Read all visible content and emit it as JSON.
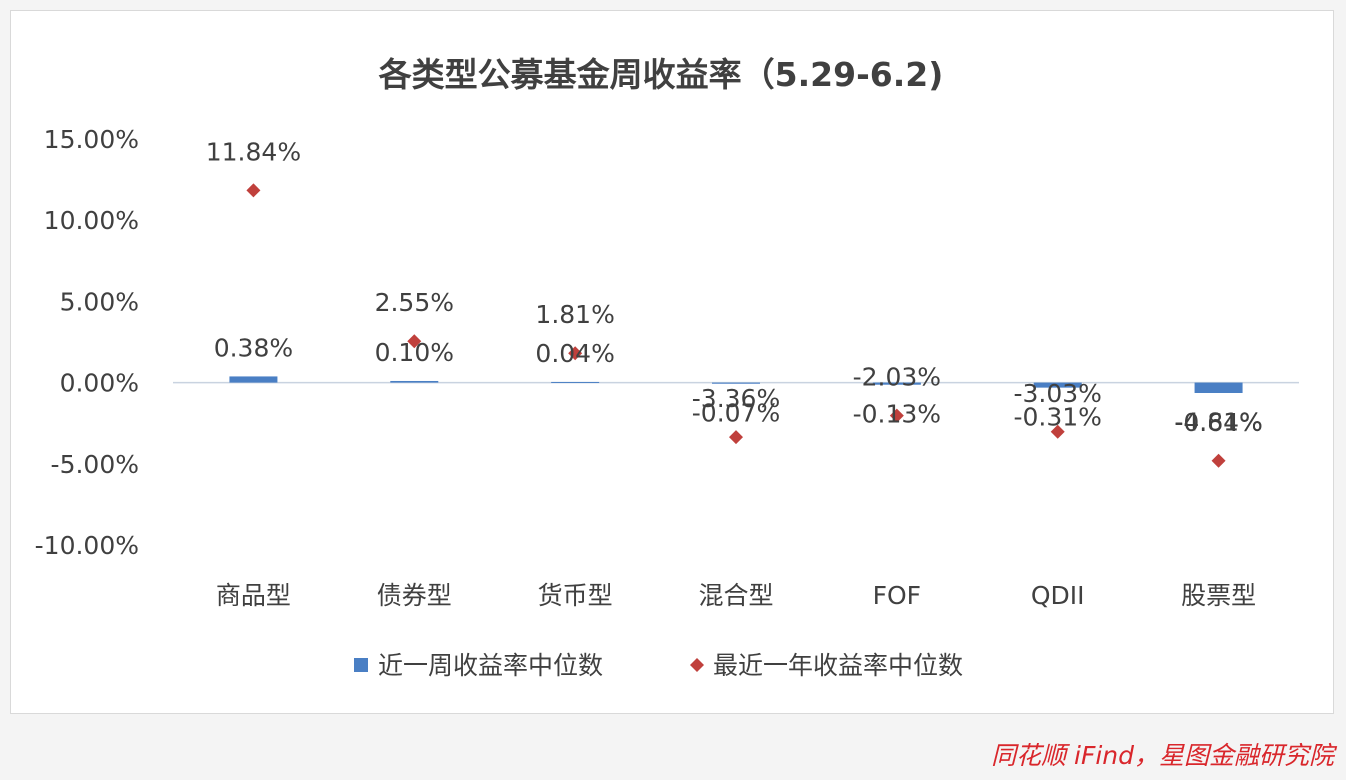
{
  "chart_data": {
    "type": "bar",
    "title": "各类型公募基金周收益率（5.29-6.2)",
    "categories": [
      "商品型",
      "债券型",
      "货币型",
      "混合型",
      "FOF",
      "QDII",
      "股票型"
    ],
    "series": [
      {
        "name": "近一周收益率中位数",
        "kind": "bar",
        "color": "#4a7fc4",
        "values": [
          0.38,
          0.1,
          0.04,
          -0.07,
          -0.13,
          -0.31,
          -0.64
        ],
        "labels": [
          "0.38%",
          "0.10%",
          "0.04%",
          "-0.07%",
          "-0.13%",
          "-0.31%",
          "-0.64%"
        ]
      },
      {
        "name": "最近一年收益率中位数",
        "kind": "marker",
        "color": "#c0403c",
        "values": [
          11.84,
          2.55,
          1.81,
          -3.36,
          -2.03,
          -3.03,
          -4.81
        ],
        "labels": [
          "11.84%",
          "2.55%",
          "1.81%",
          "-3.36%",
          "-2.03%",
          "-3.03%",
          "-4.81%"
        ]
      }
    ],
    "ylim": [
      -10,
      15
    ],
    "yticks": [
      15,
      10,
      5,
      0,
      -5,
      -10
    ],
    "ytick_labels": [
      "15.00%",
      "10.00%",
      "5.00%",
      "0.00%",
      "-5.00%",
      "-10.00%"
    ],
    "grid": false,
    "legend": "bottom"
  },
  "source_note": "同花顺 iFind，星图金融研究院"
}
